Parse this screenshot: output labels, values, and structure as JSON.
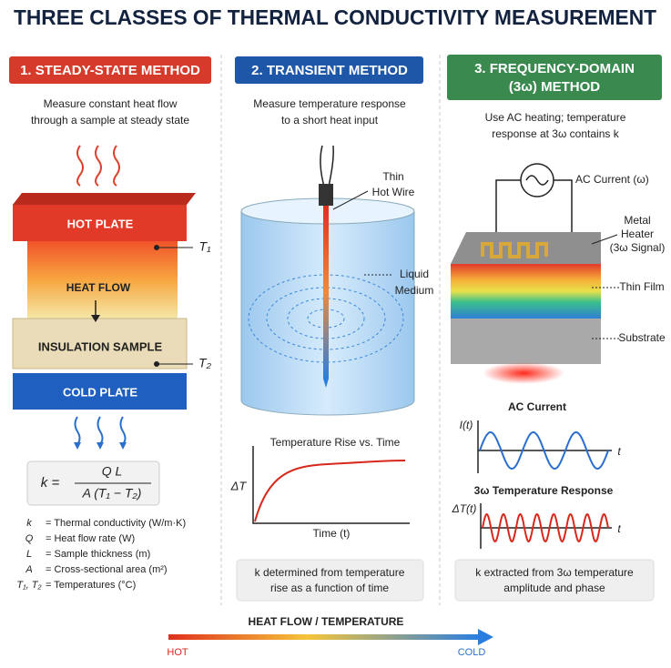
{
  "title": "THREE CLASSES OF THERMAL CONDUCTIVITY MEASUREMENT",
  "panels": [
    {
      "heading": "1. STEADY-STATE METHOD",
      "description": [
        "Measure constant heat flow",
        "through a sample at steady state"
      ],
      "labels": {
        "hot_plate": "HOT PLATE",
        "heat_flow": "HEAT FLOW",
        "sample": "INSULATION SAMPLE",
        "cold_plate": "COLD PLATE",
        "t1": "T₁",
        "t2": "T₂"
      },
      "formula": {
        "lhs": "k =",
        "numerator": "Q L",
        "denominator": "A (T₁ − T₂)"
      },
      "legend": [
        {
          "symbol": "k",
          "meaning": "=  Thermal conductivity (W/m·K)"
        },
        {
          "symbol": "Q",
          "meaning": "=  Heat flow rate (W)"
        },
        {
          "symbol": "L",
          "meaning": "=  Sample thickness (m)"
        },
        {
          "symbol": "A",
          "meaning": "=  Cross-sectional area (m²)"
        },
        {
          "symbol": "T₁, T₂",
          "meaning": "=  Temperatures (°C)"
        }
      ]
    },
    {
      "heading": "2. TRANSIENT METHOD",
      "description": [
        "Measure temperature response",
        "to a short heat input"
      ],
      "labels": {
        "wire": [
          "Thin",
          "Hot Wire"
        ],
        "medium": [
          "Liquid",
          "Medium"
        ]
      },
      "graph": {
        "title": "Temperature Rise vs. Time",
        "y_label": "ΔT",
        "x_label": "Time (t)"
      },
      "note": [
        "k determined from temperature",
        "rise as a function of time"
      ]
    },
    {
      "heading": [
        "3. FREQUENCY-DOMAIN",
        "(3ω) METHOD"
      ],
      "description": [
        "Use AC heating; temperature",
        "response at 3ω contains k"
      ],
      "labels": {
        "source": "AC Current (ω)",
        "heater": [
          "Metal",
          "Heater",
          "(3ω Signal)"
        ],
        "film": "Thin Film",
        "substrate": "Substrate"
      },
      "graphs": [
        {
          "title": "AC Current",
          "y_label": "I(t)",
          "x_label": "t"
        },
        {
          "title": "3ω Temperature Response",
          "y_label": "ΔT(t)",
          "x_label": "t"
        }
      ],
      "note": [
        "k extracted from 3ω temperature",
        "amplitude and phase"
      ]
    }
  ],
  "footer": {
    "title": "HEAT FLOW / TEMPERATURE",
    "hot": "HOT",
    "cold": "COLD"
  }
}
